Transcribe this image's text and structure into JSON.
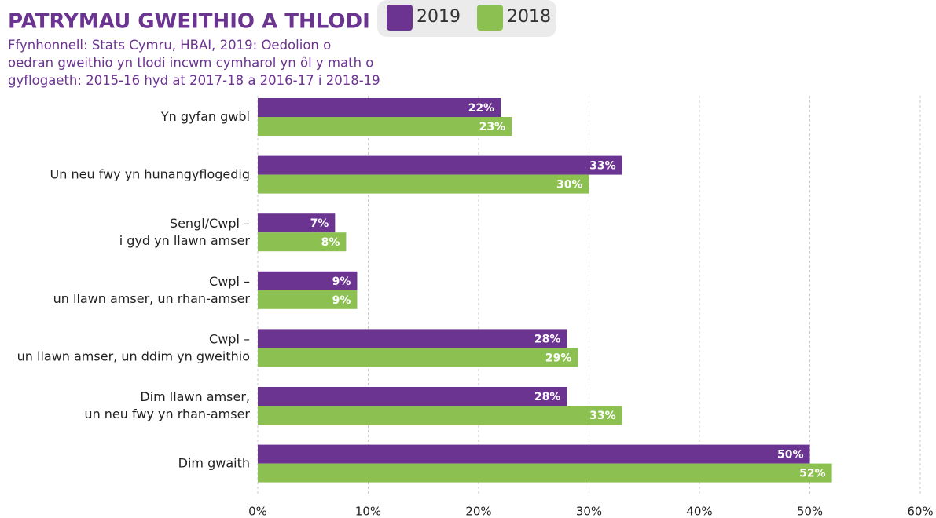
{
  "chart_data": {
    "type": "barh",
    "title": "PATRYMAU GWEITHIO A THLODI",
    "subtitle": "Ffynhonnell: Stats Cymru, HBAI, 2019: Oedolion o\noedran gweithio yn tlodi incwm cymharol yn ôl y math o\ngyflogaeth: 2015-16 hyd at 2017-18 a 2016-17 i 2018-19",
    "categories": [
      "Yn gyfan gwbl",
      "Un neu fwy yn hunangyflogedig",
      "Sengl/Cwpl –\ni gyd yn llawn amser",
      "Cwpl –\nun llawn amser, un rhan-amser",
      "Cwpl –\nun llawn amser, un ddim yn gweithio",
      "Dim llawn amser,\nun neu fwy yn rhan-amser",
      "Dim gwaith"
    ],
    "series": [
      {
        "name": "2019",
        "color": "#6c3491",
        "values": [
          22,
          33,
          7,
          9,
          28,
          28,
          50
        ],
        "value_labels": [
          "22%",
          "33%",
          "7%",
          "9%",
          "28%",
          "28%",
          "50%"
        ]
      },
      {
        "name": "2018",
        "color": "#8cc152",
        "values": [
          23,
          30,
          8,
          9,
          29,
          33,
          52
        ],
        "value_labels": [
          "23%",
          "30%",
          "8%",
          "9%",
          "29%",
          "33%",
          "52%"
        ]
      }
    ],
    "xlim": [
      0,
      60
    ],
    "xticks": [
      {
        "value": 0,
        "label": "0%"
      },
      {
        "value": 10,
        "label": "10%"
      },
      {
        "value": 20,
        "label": "20%"
      },
      {
        "value": 30,
        "label": "30%"
      },
      {
        "value": 40,
        "label": "40%"
      },
      {
        "value": 50,
        "label": "50%"
      },
      {
        "value": 60,
        "label": "60%"
      }
    ],
    "grid": true,
    "legend": "top"
  }
}
